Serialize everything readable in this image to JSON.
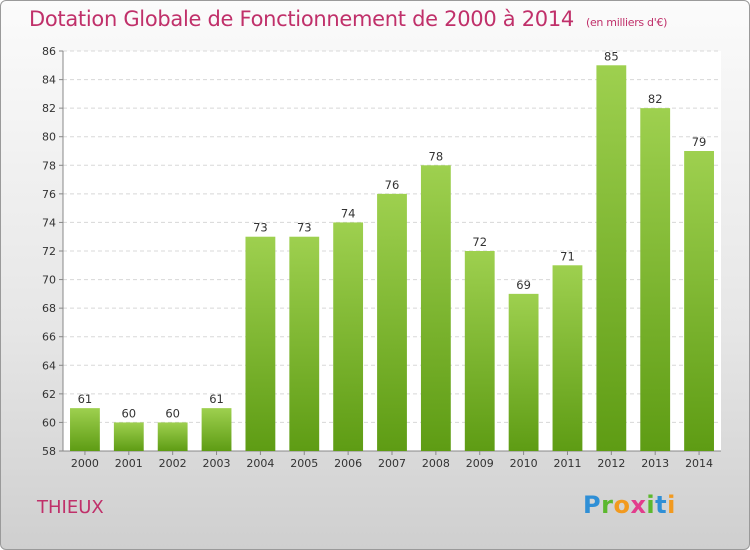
{
  "title": "Dotation Globale de Fonctionnement de 2000 à 2014",
  "subtitle": "(en milliers d'€)",
  "commune": "THIEUX",
  "logo": {
    "p": "P",
    "r": "r",
    "o": "o",
    "x": "x",
    "i1": "i",
    "t": "t",
    "i2": "i"
  },
  "colors": {
    "title": "#c0306a",
    "bar_top": "#9ed04f",
    "bar_bottom": "#5e9c14"
  },
  "chart_data": {
    "type": "bar",
    "categories": [
      "2000",
      "2001",
      "2002",
      "2003",
      "2004",
      "2005",
      "2006",
      "2007",
      "2008",
      "2009",
      "2010",
      "2011",
      "2012",
      "2013",
      "2014"
    ],
    "values": [
      61,
      60,
      60,
      61,
      73,
      73,
      74,
      76,
      78,
      72,
      69,
      71,
      85,
      82,
      79
    ],
    "ylim": [
      58,
      86
    ],
    "yticks": [
      58,
      60,
      62,
      64,
      66,
      68,
      70,
      72,
      74,
      76,
      78,
      80,
      82,
      84,
      86
    ],
    "grid": true,
    "title": "Dotation Globale de Fonctionnement de 2000 à 2014",
    "xlabel": "",
    "ylabel": ""
  }
}
